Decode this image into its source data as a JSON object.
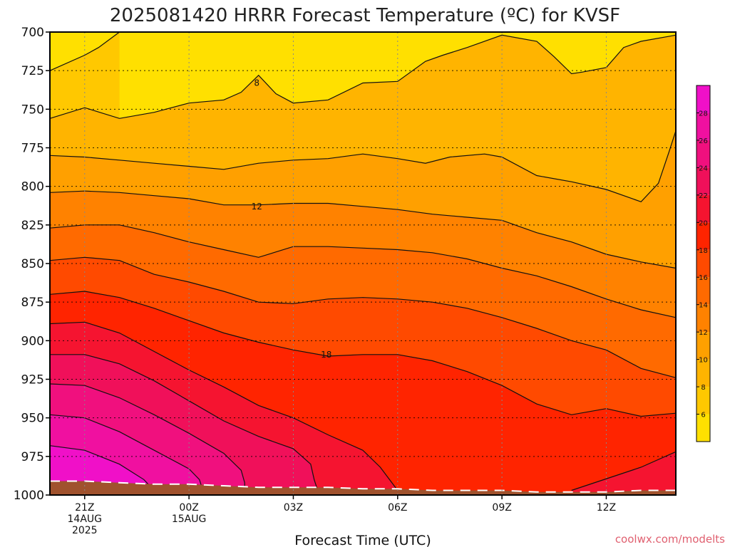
{
  "chart_data": {
    "type": "heatmap",
    "title": "2025081420 HRRR Forecast Temperature (ºC) for KVSF",
    "xlabel": "Forecast Time (UTC)",
    "ylabel": "",
    "credit": "coolwx.com/modelts",
    "x_ticks": [
      {
        "hour": 0,
        "l1": "21Z",
        "l2": "14AUG",
        "l3": "2025"
      },
      {
        "hour": 3,
        "l1": "00Z",
        "l2": "15AUG",
        "l3": ""
      },
      {
        "hour": 6,
        "l1": "03Z",
        "l2": "",
        "l3": ""
      },
      {
        "hour": 9,
        "l1": "06Z",
        "l2": "",
        "l3": ""
      },
      {
        "hour": 12,
        "l1": "09Z",
        "l2": "",
        "l3": ""
      },
      {
        "hour": 15,
        "l1": "12Z",
        "l2": "",
        "l3": ""
      }
    ],
    "xlim_hours": [
      -1,
      17
    ],
    "ylim_hpa": [
      700,
      1000
    ],
    "y_ticks": [
      700,
      725,
      750,
      775,
      800,
      825,
      850,
      875,
      900,
      925,
      950,
      975,
      1000
    ],
    "grid": true,
    "colorbar": {
      "levels": [
        4,
        6,
        8,
        10,
        12,
        14,
        16,
        18,
        20,
        22,
        24,
        26,
        28,
        30
      ],
      "labels": [
        6,
        8,
        10,
        12,
        14,
        16,
        18,
        20,
        22,
        24,
        26,
        28
      ],
      "colors": [
        "#ffe000",
        "#ffc800",
        "#ffb400",
        "#ffa000",
        "#ff8200",
        "#ff6a00",
        "#ff4a00",
        "#ff2400",
        "#f51430",
        "#f0105a",
        "#f0107e",
        "#f010a0",
        "#f010c8"
      ]
    },
    "ground_color": "#a0522d",
    "contour_labels": [
      {
        "value": "8",
        "hour": 4.95,
        "p": 733
      },
      {
        "value": "12",
        "hour": 4.95,
        "p": 813
      },
      {
        "value": "18",
        "hour": 6.95,
        "p": 909
      }
    ],
    "bands": [
      {
        "level": 6,
        "color": "#ffc800",
        "pts": [
          [
            -1,
            725
          ],
          [
            0,
            715
          ],
          [
            0.4,
            710
          ],
          [
            1,
            700
          ]
        ]
      },
      {
        "level": 8,
        "color": "#ffb400",
        "pts": [
          [
            -1,
            756
          ],
          [
            0,
            749
          ],
          [
            1,
            756
          ],
          [
            2,
            752
          ],
          [
            3,
            746
          ],
          [
            4,
            744
          ],
          [
            4.5,
            739
          ],
          [
            5,
            728
          ],
          [
            5.5,
            740
          ],
          [
            6,
            746
          ],
          [
            7,
            744
          ],
          [
            8,
            733
          ],
          [
            9,
            732
          ],
          [
            9.8,
            719
          ],
          [
            10.3,
            715
          ],
          [
            11,
            710
          ],
          [
            12,
            702
          ],
          [
            13,
            706
          ],
          [
            13.5,
            716
          ],
          [
            14,
            727
          ],
          [
            14.3,
            726
          ],
          [
            15,
            723
          ],
          [
            15.5,
            710
          ],
          [
            16,
            706
          ],
          [
            17,
            702
          ]
        ]
      },
      {
        "level": 10,
        "color": "#ffa000",
        "pts": [
          [
            -1,
            780
          ],
          [
            0,
            781
          ],
          [
            1,
            783
          ],
          [
            2,
            785
          ],
          [
            3,
            787
          ],
          [
            4,
            789
          ],
          [
            5,
            785
          ],
          [
            6,
            783
          ],
          [
            7,
            782
          ],
          [
            8,
            779
          ],
          [
            9,
            782
          ],
          [
            9.8,
            785
          ],
          [
            10.5,
            781
          ],
          [
            11.5,
            779
          ],
          [
            12,
            781
          ],
          [
            13,
            793
          ],
          [
            14,
            797
          ],
          [
            15,
            802
          ],
          [
            16,
            810
          ],
          [
            16.5,
            798
          ],
          [
            16.8,
            778
          ],
          [
            17,
            764
          ],
          [
            17,
            752
          ]
        ]
      },
      {
        "level": 12,
        "color": "#ff8200",
        "pts": [
          [
            -1,
            804
          ],
          [
            0,
            803
          ],
          [
            1,
            804
          ],
          [
            2,
            806
          ],
          [
            3,
            808
          ],
          [
            4,
            812
          ],
          [
            5,
            812
          ],
          [
            6,
            811
          ],
          [
            7,
            811
          ],
          [
            8,
            813
          ],
          [
            9,
            815
          ],
          [
            10,
            818
          ],
          [
            11,
            820
          ],
          [
            12,
            822
          ],
          [
            13,
            830
          ],
          [
            14,
            836
          ],
          [
            15,
            844
          ],
          [
            16,
            849
          ],
          [
            17,
            853
          ]
        ]
      },
      {
        "level": 14,
        "color": "#ff6a00",
        "pts": [
          [
            -1,
            827
          ],
          [
            0,
            825
          ],
          [
            1,
            825
          ],
          [
            2,
            830
          ],
          [
            3,
            836
          ],
          [
            4,
            841
          ],
          [
            5,
            846
          ],
          [
            6,
            839
          ],
          [
            7,
            839
          ],
          [
            8,
            840
          ],
          [
            9,
            841
          ],
          [
            10,
            843
          ],
          [
            11,
            847
          ],
          [
            12,
            853
          ],
          [
            13,
            858
          ],
          [
            14,
            865
          ],
          [
            15,
            873
          ],
          [
            16,
            880
          ],
          [
            17,
            885
          ]
        ]
      },
      {
        "level": 16,
        "color": "#ff4a00",
        "pts": [
          [
            -1,
            848
          ],
          [
            0,
            846
          ],
          [
            1,
            848
          ],
          [
            2,
            857
          ],
          [
            3,
            862
          ],
          [
            4,
            868
          ],
          [
            5,
            875
          ],
          [
            6,
            876
          ],
          [
            7,
            873
          ],
          [
            8,
            872
          ],
          [
            9,
            873
          ],
          [
            10,
            875
          ],
          [
            11,
            879
          ],
          [
            12,
            885
          ],
          [
            13,
            892
          ],
          [
            14,
            900
          ],
          [
            15,
            906
          ],
          [
            16,
            918
          ],
          [
            17,
            924
          ]
        ]
      },
      {
        "level": 18,
        "color": "#ff2400",
        "pts": [
          [
            -1,
            870
          ],
          [
            0,
            868
          ],
          [
            1,
            872
          ],
          [
            2,
            879
          ],
          [
            3,
            887
          ],
          [
            4,
            895
          ],
          [
            5,
            901
          ],
          [
            6,
            906
          ],
          [
            7,
            910
          ],
          [
            8,
            909
          ],
          [
            9,
            909
          ],
          [
            10,
            913
          ],
          [
            11,
            920
          ],
          [
            12,
            929
          ],
          [
            13,
            941
          ],
          [
            14,
            948
          ],
          [
            15,
            944
          ],
          [
            16,
            949
          ],
          [
            17,
            947
          ]
        ]
      },
      {
        "level": 20,
        "color": "#f51430",
        "pts": [
          [
            -1,
            889
          ],
          [
            0,
            888
          ],
          [
            1,
            895
          ],
          [
            2,
            907
          ],
          [
            3,
            919
          ],
          [
            4,
            930
          ],
          [
            5,
            942
          ],
          [
            6,
            950
          ],
          [
            7,
            961
          ],
          [
            8,
            971
          ],
          [
            8.5,
            982
          ],
          [
            9,
            997
          ]
        ]
      },
      {
        "level": 22,
        "color": "#f0105a",
        "pts": [
          [
            -1,
            909
          ],
          [
            0,
            909
          ],
          [
            1,
            915
          ],
          [
            2,
            926
          ],
          [
            3,
            939
          ],
          [
            4,
            952
          ],
          [
            5,
            962
          ],
          [
            6,
            970
          ],
          [
            6.5,
            980
          ],
          [
            6.6,
            990
          ],
          [
            6.7,
            997
          ]
        ]
      },
      {
        "level": 24,
        "color": "#f0107e",
        "pts": [
          [
            -1,
            928
          ],
          [
            0,
            929
          ],
          [
            1,
            937
          ],
          [
            2,
            948
          ],
          [
            3,
            960
          ],
          [
            4,
            973
          ],
          [
            4.5,
            984
          ],
          [
            4.6,
            992
          ],
          [
            4.6,
            997
          ]
        ]
      },
      {
        "level": 26,
        "color": "#f010a0",
        "pts": [
          [
            -1,
            948
          ],
          [
            0,
            950
          ],
          [
            1,
            959
          ],
          [
            2,
            971
          ],
          [
            3,
            983
          ],
          [
            3.3,
            990
          ],
          [
            3.4,
            997
          ]
        ]
      },
      {
        "level": 28,
        "color": "#f010c8",
        "pts": [
          [
            -1,
            968
          ],
          [
            0,
            971
          ],
          [
            1,
            980
          ],
          [
            1.7,
            990
          ],
          [
            2,
            997
          ]
        ]
      },
      {
        "level": 20,
        "color": "#f51430",
        "pts": [
          [
            14,
            997
          ],
          [
            16,
            982
          ],
          [
            17,
            972
          ]
        ]
      }
    ],
    "ground": [
      [
        -1,
        991
      ],
      [
        0,
        991
      ],
      [
        1,
        992
      ],
      [
        2,
        993
      ],
      [
        3,
        993
      ],
      [
        4,
        994
      ],
      [
        5,
        995
      ],
      [
        6,
        995
      ],
      [
        7,
        995
      ],
      [
        8,
        996
      ],
      [
        9,
        996
      ],
      [
        10,
        997
      ],
      [
        11,
        997
      ],
      [
        12,
        997
      ],
      [
        13,
        998
      ],
      [
        14,
        998
      ],
      [
        15,
        998
      ],
      [
        16,
        997
      ],
      [
        17,
        997
      ]
    ]
  }
}
